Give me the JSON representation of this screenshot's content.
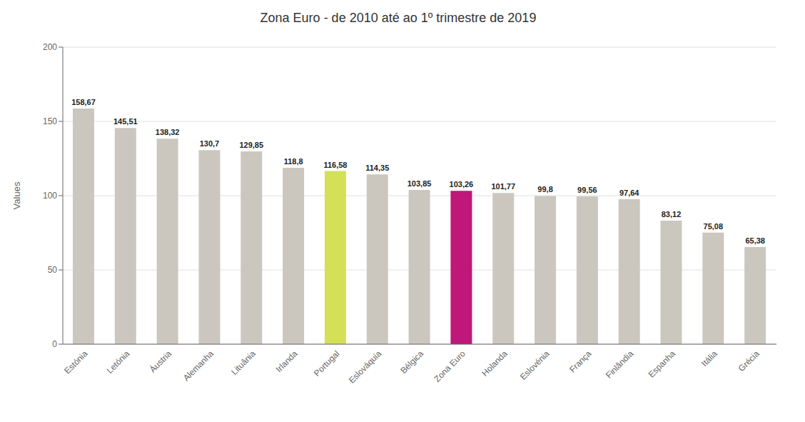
{
  "chart_data": {
    "type": "bar",
    "title": "Zona Euro - de 2010 até ao 1º trimestre de 2019",
    "ylabel": "Values",
    "categories": [
      "Estónia",
      "Letónia",
      "Áustria",
      "Alemanha",
      "Lituânia",
      "Irlanda",
      "Portugal",
      "Eslováquia",
      "Bélgica",
      "Zona Euro",
      "Holanda",
      "Eslovénia",
      "França",
      "Finlândia",
      "Espanha",
      "Itália",
      "Grécia"
    ],
    "values": [
      158.67,
      145.51,
      138.32,
      130.7,
      129.85,
      118.8,
      116.58,
      114.35,
      103.85,
      103.26,
      101.77,
      99.8,
      99.56,
      97.64,
      83.12,
      75.08,
      65.38
    ],
    "value_labels": [
      "158,67",
      "145,51",
      "138,32",
      "130,7",
      "129,85",
      "118,8",
      "116,58",
      "114,35",
      "103,85",
      "103,26",
      "101,77",
      "99,8",
      "99,56",
      "97,64",
      "83,12",
      "75,08",
      "65,38"
    ],
    "colors": [
      "#cbc7bf",
      "#cbc7bf",
      "#cbc7bf",
      "#cbc7bf",
      "#cbc7bf",
      "#cbc7bf",
      "#d4e156",
      "#cbc7bf",
      "#cbc7bf",
      "#c0177a",
      "#cbc7bf",
      "#cbc7bf",
      "#cbc7bf",
      "#cbc7bf",
      "#cbc7bf",
      "#cbc7bf",
      "#cbc7bf"
    ],
    "ylim": [
      0,
      200
    ],
    "yticks": [
      0,
      50,
      100,
      150,
      200
    ],
    "grid": true
  }
}
